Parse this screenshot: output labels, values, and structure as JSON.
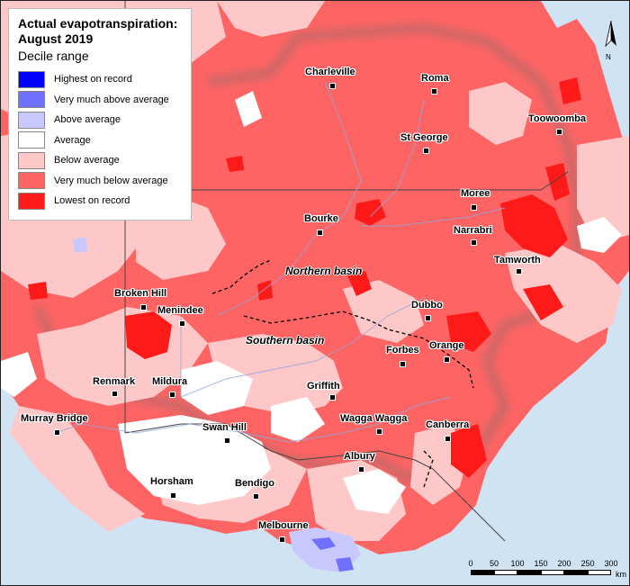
{
  "legend": {
    "title_line1": "Actual evapotranspiration:",
    "title_line2": "August 2019",
    "subtitle": "Decile range",
    "items": [
      {
        "label": "Highest on record",
        "color": "#0000ff"
      },
      {
        "label": "Very much above average",
        "color": "#7070ff"
      },
      {
        "label": "Above average",
        "color": "#c8c8ff"
      },
      {
        "label": "Average",
        "color": "#ffffff"
      },
      {
        "label": "Below average",
        "color": "#ffc8c8"
      },
      {
        "label": "Very much below average",
        "color": "#ff6464"
      },
      {
        "label": "Lowest on record",
        "color": "#ff1a1a"
      }
    ]
  },
  "towns": [
    {
      "name": "Charleville"
    },
    {
      "name": "Roma"
    },
    {
      "name": "Toowoomba"
    },
    {
      "name": "St George"
    },
    {
      "name": "Moree"
    },
    {
      "name": "Bourke"
    },
    {
      "name": "Narrabri"
    },
    {
      "name": "Tamworth"
    },
    {
      "name": "Broken Hill"
    },
    {
      "name": "Menindee"
    },
    {
      "name": "Dubbo"
    },
    {
      "name": "Orange"
    },
    {
      "name": "Forbes"
    },
    {
      "name": "Renmark"
    },
    {
      "name": "Mildura"
    },
    {
      "name": "Griffith"
    },
    {
      "name": "Murray Bridge"
    },
    {
      "name": "Swan Hill"
    },
    {
      "name": "Wagga Wagga"
    },
    {
      "name": "Canberra"
    },
    {
      "name": "Albury"
    },
    {
      "name": "Horsham"
    },
    {
      "name": "Bendigo"
    },
    {
      "name": "Melbourne"
    }
  ],
  "basins": {
    "northern": "Northern basin",
    "southern": "Southern basin"
  },
  "scale": {
    "ticks": [
      "0",
      "50",
      "100",
      "150",
      "200",
      "250",
      "300"
    ],
    "unit": "km"
  },
  "north_label": "N",
  "colors": {
    "ocean": "#cfe3f3",
    "very_much_below": "#ff6464",
    "below": "#ffc8c8",
    "average": "#ffffff",
    "lowest": "#ff1a1a",
    "above": "#c8c8ff",
    "very_much_above": "#7070ff"
  }
}
